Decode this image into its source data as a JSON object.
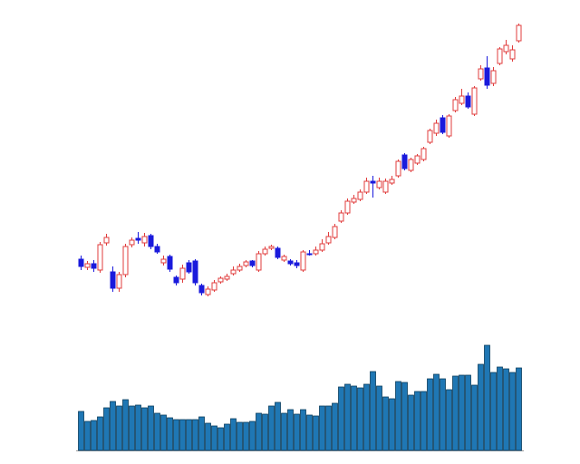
{
  "chart_data": {
    "type": "candlestick",
    "open": [
      226,
      217,
      221,
      214,
      244,
      212,
      194,
      209,
      242,
      249,
      244,
      252,
      240,
      222,
      229,
      206,
      204,
      222,
      224,
      197,
      187,
      192,
      201,
      204,
      210,
      214,
      219,
      224,
      214,
      232,
      238,
      238,
      225,
      224,
      222,
      214,
      232,
      232,
      236,
      244,
      250,
      268,
      277,
      289,
      292,
      300,
      312,
      305,
      300,
      310,
      318,
      341,
      324,
      332,
      336,
      355,
      365,
      382,
      362,
      390,
      398,
      406,
      386,
      425,
      437,
      420,
      442,
      455,
      447,
      467
    ],
    "close": [
      218,
      221,
      216,
      242,
      250,
      194,
      209,
      240,
      247,
      247,
      251,
      240,
      234,
      226,
      215,
      200,
      216,
      212,
      200,
      189,
      193,
      200,
      205,
      207,
      214,
      218,
      223,
      219,
      232,
      237,
      240,
      228,
      229,
      221,
      219,
      234,
      231,
      236,
      243,
      251,
      262,
      277,
      290,
      293,
      300,
      312,
      310,
      312,
      312,
      314,
      334,
      326,
      336,
      340,
      348,
      368,
      376,
      366,
      384,
      402,
      406,
      394,
      415,
      436,
      418,
      434,
      458,
      462,
      457,
      484
    ],
    "high": [
      230,
      224,
      225,
      245,
      254,
      218,
      212,
      243,
      250,
      256,
      255,
      254,
      243,
      230,
      231,
      208,
      220,
      225,
      226,
      199,
      196,
      203,
      207,
      210,
      218,
      221,
      225,
      225,
      235,
      240,
      242,
      240,
      231,
      226,
      225,
      236,
      236,
      240,
      248,
      256,
      265,
      280,
      293,
      297,
      303,
      316,
      318,
      316,
      315,
      318,
      336,
      343,
      338,
      342,
      350,
      370,
      380,
      385,
      386,
      405,
      414,
      410,
      417,
      440,
      450,
      438,
      460,
      468,
      462,
      486
    ],
    "low": [
      214,
      214,
      212,
      211,
      241,
      190,
      190,
      206,
      239,
      243,
      240,
      237,
      232,
      219,
      212,
      197,
      200,
      210,
      197,
      186,
      185,
      190,
      199,
      202,
      208,
      212,
      217,
      217,
      212,
      230,
      236,
      226,
      223,
      219,
      216,
      212,
      230,
      230,
      234,
      242,
      248,
      266,
      275,
      287,
      290,
      298,
      294,
      303,
      298,
      308,
      316,
      324,
      322,
      330,
      334,
      353,
      362,
      364,
      360,
      388,
      396,
      392,
      384,
      423,
      414,
      417,
      440,
      452,
      444,
      465
    ],
    "volume": [
      43,
      32,
      33,
      37,
      47,
      54,
      49,
      56,
      49,
      50,
      47,
      49,
      41,
      39,
      36,
      34,
      34,
      34,
      34,
      37,
      30,
      27,
      25,
      29,
      35,
      31,
      31,
      32,
      41,
      40,
      49,
      53,
      41,
      45,
      40,
      45,
      39,
      38,
      49,
      49,
      52,
      70,
      73,
      71,
      69,
      73,
      87,
      71,
      59,
      57,
      76,
      75,
      61,
      65,
      65,
      79,
      84,
      79,
      67,
      82,
      83,
      83,
      72,
      95,
      116,
      86,
      92,
      90,
      86,
      91
    ],
    "up_color": "#e03c3c",
    "down_color": "#1a1adc",
    "volume_color": "#1f77b4",
    "ylim": [
      150,
      500
    ],
    "volume_ylim": [
      0,
      130
    ]
  }
}
